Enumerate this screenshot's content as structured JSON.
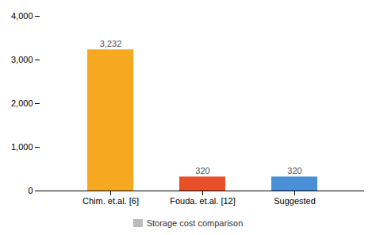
{
  "chart_data": {
    "type": "bar",
    "categories": [
      "Chim. et.al. [6]",
      "Fouda. et.al. [12]",
      "Suggested"
    ],
    "series": [
      {
        "name": "Storage cost comparison",
        "color": "#BBBBBB",
        "colors": [
          "#F5A820",
          "#E8502A",
          "#4A90D9"
        ],
        "values": [
          3232,
          320,
          320
        ],
        "value_labels": [
          "3,232",
          "320",
          "320"
        ]
      }
    ],
    "ylim": [
      0,
      4000
    ],
    "yticks": [
      0,
      {
        "value": 1000,
        "label": "1,000"
      },
      {
        "value": 2000,
        "label": "2,000"
      },
      {
        "value": 3000,
        "label": "3,000"
      },
      {
        "value": 4000,
        "label": "4,000"
      }
    ],
    "grid": false,
    "data_labels": true,
    "legend": "bottom"
  }
}
